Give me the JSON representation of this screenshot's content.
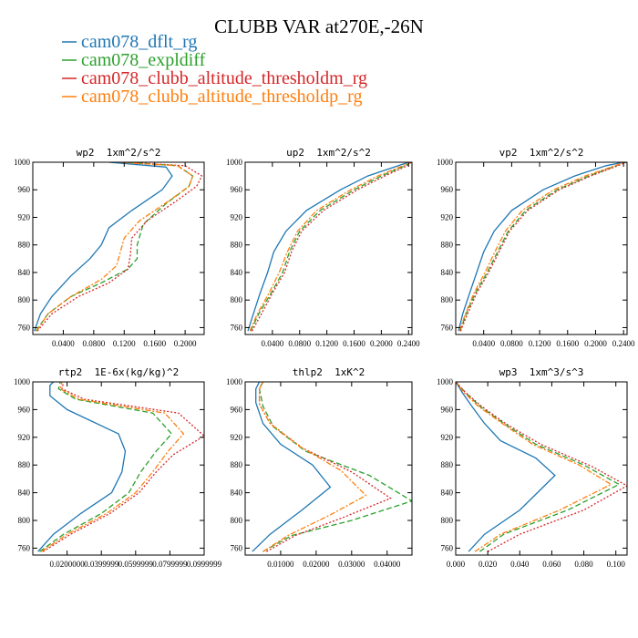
{
  "chart_data": {
    "title": "CLUBB VAR at270E,-26N",
    "legend": [
      {
        "name": "cam078_dflt_rg",
        "color": "#1f77b4",
        "dash": "solid"
      },
      {
        "name": "cam078_expldiff",
        "color": "#2ca02c",
        "dash": "dashed"
      },
      {
        "name": "cam078_clubb_altitude_thresholdm_rg",
        "color": "#d62728",
        "dash": "dotted"
      },
      {
        "name": "cam078_clubb_altitude_thresholdp_rg",
        "color": "#ff7f0e",
        "dash": "dashdot"
      }
    ],
    "panels": [
      {
        "type": "line",
        "title": "wp2  1xm^2/s^2",
        "ylim": [
          1000,
          750
        ],
        "yticks": [
          760,
          800,
          840,
          880,
          920,
          960,
          1000
        ],
        "xlim": [
          0.0,
          0.225
        ],
        "xtick_labels": [
          [
            0.04,
            "0.0400"
          ],
          [
            0.08,
            "0.0800"
          ],
          [
            0.12,
            "0.1200"
          ],
          [
            0.16,
            "0.1600"
          ],
          [
            0.2,
            "0.2000"
          ]
        ],
        "series": [
          {
            "x": [
              0.002,
              0.01,
              0.025,
              0.05,
              0.075,
              0.09,
              0.1,
              0.13,
              0.17,
              0.183,
              0.175,
              0.1
            ],
            "y": [
              755,
              780,
              805,
              835,
              860,
              880,
              905,
              930,
              960,
              980,
              993,
              1000
            ]
          },
          {
            "x": [
              0.004,
              0.02,
              0.05,
              0.09,
              0.125,
              0.137,
              0.137,
              0.145,
              0.175,
              0.205,
              0.21,
              0.19,
              0.12
            ],
            "y": [
              755,
              780,
              805,
              825,
              845,
              860,
              880,
              910,
              940,
              965,
              980,
              995,
              1000
            ]
          },
          {
            "x": [
              0.006,
              0.025,
              0.06,
              0.1,
              0.125,
              0.128,
              0.13,
              0.15,
              0.19,
              0.215,
              0.222,
              0.2,
              0.12
            ],
            "y": [
              755,
              780,
              805,
              825,
              845,
              865,
              890,
              915,
              945,
              965,
              980,
              995,
              1000
            ]
          },
          {
            "x": [
              0.005,
              0.02,
              0.05,
              0.09,
              0.11,
              0.115,
              0.12,
              0.14,
              0.18,
              0.205,
              0.21,
              0.19,
              0.11
            ],
            "y": [
              755,
              780,
              805,
              830,
              850,
              870,
              890,
              915,
              945,
              965,
              980,
              995,
              1000
            ]
          }
        ]
      },
      {
        "type": "line",
        "title": "up2  1xm^2/s^2",
        "ylim": [
          1000,
          750
        ],
        "yticks": [
          760,
          800,
          840,
          880,
          920,
          960,
          1000
        ],
        "xlim": [
          0.0,
          0.245
        ],
        "xtick_labels": [
          [
            0.04,
            "0.0400"
          ],
          [
            0.08,
            "0.0800"
          ],
          [
            0.12,
            "0.1200"
          ],
          [
            0.16,
            "0.1600"
          ],
          [
            0.2,
            "0.2000"
          ],
          [
            0.24,
            "0.2400"
          ]
        ],
        "series": [
          {
            "x": [
              0.004,
              0.012,
              0.022,
              0.033,
              0.042,
              0.06,
              0.09,
              0.14,
              0.18,
              0.225,
              0.24
            ],
            "y": [
              755,
              780,
              810,
              840,
              870,
              900,
              930,
              960,
              980,
              995,
              1000
            ]
          },
          {
            "x": [
              0.008,
              0.02,
              0.038,
              0.055,
              0.065,
              0.08,
              0.11,
              0.16,
              0.2,
              0.235,
              0.243
            ],
            "y": [
              755,
              780,
              810,
              840,
              870,
              900,
              930,
              960,
              980,
              995,
              1000
            ]
          },
          {
            "x": [
              0.01,
              0.024,
              0.04,
              0.058,
              0.068,
              0.083,
              0.115,
              0.165,
              0.205,
              0.238,
              0.244
            ],
            "y": [
              755,
              780,
              810,
              840,
              870,
              900,
              930,
              960,
              980,
              995,
              1000
            ]
          },
          {
            "x": [
              0.007,
              0.018,
              0.035,
              0.05,
              0.062,
              0.077,
              0.105,
              0.155,
              0.195,
              0.232,
              0.242
            ],
            "y": [
              755,
              780,
              810,
              840,
              870,
              900,
              930,
              960,
              980,
              995,
              1000
            ]
          }
        ]
      },
      {
        "type": "line",
        "title": "vp2  1xm^2/s^2",
        "ylim": [
          1000,
          750
        ],
        "yticks": [
          760,
          800,
          840,
          880,
          920,
          960,
          1000
        ],
        "xlim": [
          0.0,
          0.245
        ],
        "xtick_labels": [
          [
            0.04,
            "0.0400"
          ],
          [
            0.08,
            "0.0800"
          ],
          [
            0.12,
            "0.1200"
          ],
          [
            0.16,
            "0.1600"
          ],
          [
            0.2,
            "0.2000"
          ],
          [
            0.24,
            "0.2400"
          ]
        ],
        "series": [
          {
            "x": [
              0.004,
              0.01,
              0.02,
              0.03,
              0.04,
              0.055,
              0.08,
              0.125,
              0.17,
              0.215,
              0.24
            ],
            "y": [
              755,
              780,
              810,
              840,
              870,
              900,
              930,
              960,
              980,
              995,
              1000
            ]
          },
          {
            "x": [
              0.006,
              0.015,
              0.028,
              0.045,
              0.06,
              0.075,
              0.1,
              0.145,
              0.19,
              0.23,
              0.243
            ],
            "y": [
              755,
              780,
              810,
              840,
              870,
              900,
              930,
              960,
              980,
              995,
              1000
            ]
          },
          {
            "x": [
              0.007,
              0.017,
              0.03,
              0.047,
              0.062,
              0.077,
              0.103,
              0.148,
              0.193,
              0.232,
              0.244
            ],
            "y": [
              755,
              780,
              810,
              840,
              870,
              900,
              930,
              960,
              980,
              995,
              1000
            ]
          },
          {
            "x": [
              0.005,
              0.014,
              0.026,
              0.042,
              0.056,
              0.071,
              0.095,
              0.14,
              0.185,
              0.228,
              0.242
            ],
            "y": [
              755,
              780,
              810,
              840,
              870,
              900,
              930,
              960,
              980,
              995,
              1000
            ]
          }
        ]
      },
      {
        "type": "line",
        "title": "rtp2  1E-6x(kg/kg)^2",
        "ylim": [
          1000,
          750
        ],
        "yticks": [
          760,
          800,
          840,
          880,
          920,
          960,
          1000
        ],
        "xlim": [
          0.0,
          0.1
        ],
        "xtick_labels": [
          [
            0.02,
            "0.0200000"
          ],
          [
            0.04,
            "0.0399999"
          ],
          [
            0.06,
            "0.0599999"
          ],
          [
            0.08,
            "0.0799999"
          ],
          [
            0.1,
            "0.0999999"
          ]
        ],
        "series": [
          {
            "x": [
              0.003,
              0.012,
              0.028,
              0.046,
              0.052,
              0.054,
              0.05,
              0.02,
              0.01,
              0.01,
              0.012
            ],
            "y": [
              755,
              780,
              810,
              840,
              870,
              900,
              925,
              960,
              980,
              995,
              1000
            ]
          },
          {
            "x": [
              0.004,
              0.018,
              0.04,
              0.056,
              0.063,
              0.072,
              0.081,
              0.07,
              0.025,
              0.015,
              0.016
            ],
            "y": [
              755,
              780,
              810,
              840,
              870,
              900,
              925,
              955,
              975,
              990,
              1000
            ]
          },
          {
            "x": [
              0.006,
              0.022,
              0.045,
              0.062,
              0.072,
              0.082,
              0.1,
              0.085,
              0.03,
              0.017,
              0.018
            ],
            "y": [
              755,
              780,
              810,
              840,
              870,
              895,
              922,
              955,
              975,
              990,
              1000
            ]
          },
          {
            "x": [
              0.005,
              0.02,
              0.043,
              0.06,
              0.07,
              0.079,
              0.088,
              0.077,
              0.027,
              0.016,
              0.017
            ],
            "y": [
              755,
              780,
              810,
              840,
              870,
              900,
              925,
              955,
              975,
              990,
              1000
            ]
          }
        ]
      },
      {
        "type": "line",
        "title": "thlp2  1xK^2",
        "ylim": [
          1000,
          750
        ],
        "yticks": [
          760,
          800,
          840,
          880,
          920,
          960,
          1000
        ],
        "xlim": [
          0.0,
          0.047
        ],
        "xtick_labels": [
          [
            0.01,
            "0.01000"
          ],
          [
            0.02,
            "0.02000"
          ],
          [
            0.03,
            "0.03000"
          ],
          [
            0.04,
            "0.04000"
          ]
        ],
        "series": [
          {
            "x": [
              0.002,
              0.007,
              0.016,
              0.024,
              0.019,
              0.01,
              0.005,
              0.003,
              0.003,
              0.004
            ],
            "y": [
              755,
              780,
              815,
              848,
              880,
              910,
              940,
              970,
              990,
              1000
            ]
          },
          {
            "x": [
              0.005,
              0.013,
              0.03,
              0.047,
              0.035,
              0.017,
              0.008,
              0.005,
              0.004,
              0.005
            ],
            "y": [
              755,
              778,
              800,
              828,
              865,
              900,
              935,
              965,
              990,
              1000
            ]
          },
          {
            "x": [
              0.006,
              0.014,
              0.028,
              0.041,
              0.03,
              0.016,
              0.007,
              0.004,
              0.004,
              0.005
            ],
            "y": [
              755,
              778,
              805,
              832,
              870,
              905,
              940,
              968,
              990,
              1000
            ]
          },
          {
            "x": [
              0.005,
              0.012,
              0.024,
              0.034,
              0.027,
              0.015,
              0.007,
              0.004,
              0.004,
              0.005
            ],
            "y": [
              755,
              778,
              808,
              836,
              872,
              908,
              940,
              968,
              990,
              1000
            ]
          }
        ]
      },
      {
        "type": "line",
        "title": "wp3  1xm^3/s^3",
        "ylim": [
          1000,
          750
        ],
        "yticks": [
          760,
          800,
          840,
          880,
          920,
          960,
          1000
        ],
        "xlim": [
          0.0,
          0.107
        ],
        "xtick_labels": [
          [
            0.0,
            "0.000"
          ],
          [
            0.02,
            "0.020"
          ],
          [
            0.04,
            "0.040"
          ],
          [
            0.06,
            "0.060"
          ],
          [
            0.08,
            "0.080"
          ],
          [
            0.1,
            "0.100"
          ]
        ],
        "series": [
          {
            "x": [
              0.008,
              0.018,
              0.04,
              0.062,
              0.05,
              0.028,
              0.018,
              0.01,
              0.004,
              0.0
            ],
            "y": [
              755,
              780,
              815,
              865,
              890,
              915,
              940,
              965,
              985,
              1000
            ]
          },
          {
            "x": [
              0.015,
              0.03,
              0.07,
              0.102,
              0.08,
              0.05,
              0.03,
              0.015,
              0.006,
              0.0
            ],
            "y": [
              755,
              780,
              815,
              852,
              880,
              910,
              940,
              965,
              985,
              1000
            ]
          },
          {
            "x": [
              0.02,
              0.04,
              0.08,
              0.107,
              0.085,
              0.053,
              0.031,
              0.016,
              0.006,
              0.0
            ],
            "y": [
              755,
              780,
              815,
              850,
              878,
              910,
              940,
              965,
              985,
              1000
            ]
          },
          {
            "x": [
              0.012,
              0.028,
              0.065,
              0.097,
              0.077,
              0.048,
              0.029,
              0.014,
              0.005,
              0.0
            ],
            "y": [
              755,
              780,
              815,
              852,
              880,
              910,
              940,
              965,
              985,
              1000
            ]
          }
        ]
      }
    ]
  }
}
